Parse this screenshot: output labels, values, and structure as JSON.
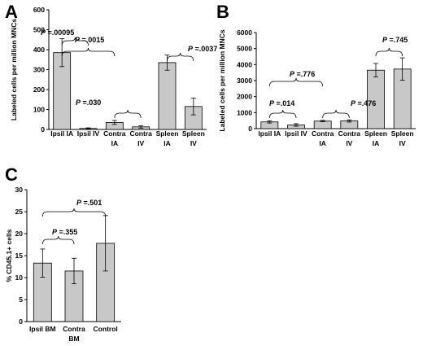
{
  "chart_data": [
    {
      "type": "bar",
      "panel": "A",
      "ylabel": "Labeled cells per million MNCs",
      "ylim": [
        0,
        600
      ],
      "yticks": [
        "0",
        "100",
        "200",
        "300",
        "400",
        "500",
        "600"
      ],
      "categories": [
        [
          "Ipsil IA"
        ],
        [
          "Ipsil IV"
        ],
        [
          "Contra",
          "IA"
        ],
        [
          "Contra",
          "IV"
        ],
        [
          "Spleen",
          "IA"
        ],
        [
          "Spleen",
          "IV"
        ]
      ],
      "values": [
        385,
        5,
        35,
        13,
        335,
        115
      ],
      "errors": [
        70,
        3,
        10,
        6,
        38,
        42
      ],
      "comparisons": [
        {
          "p": ".00095",
          "from": 0,
          "to": 1
        },
        {
          "p": ".0015",
          "from": 0,
          "to": 2
        },
        {
          "p": ".030",
          "from": 2,
          "to": 3
        },
        {
          "p": ".0037",
          "from": 4,
          "to": 5
        }
      ]
    },
    {
      "type": "bar",
      "panel": "B",
      "ylabel": "Labeled cells per million MNCs",
      "ylim": [
        0,
        6000
      ],
      "yticks": [
        "0",
        "1000",
        "2000",
        "3000",
        "4000",
        "5000",
        "6000"
      ],
      "categories": [
        [
          "Ipsil IA"
        ],
        [
          "Ipsil IV"
        ],
        [
          "Contra",
          "IA"
        ],
        [
          "Contra",
          "IV"
        ],
        [
          "Spleen",
          "IA"
        ],
        [
          "Spleen",
          "IV"
        ]
      ],
      "values": [
        420,
        230,
        470,
        480,
        3650,
        3720
      ],
      "errors": [
        70,
        80,
        40,
        70,
        420,
        700
      ],
      "comparisons": [
        {
          "p": ".776",
          "from": 0,
          "to": 2
        },
        {
          "p": ".014",
          "from": 0,
          "to": 1
        },
        {
          "p": ".476",
          "from": 2,
          "to": 3
        },
        {
          "p": ".745",
          "from": 4,
          "to": 5
        }
      ]
    },
    {
      "type": "bar",
      "panel": "C",
      "ylabel": "% CD45.1+ cells",
      "ylim": [
        0,
        30
      ],
      "yticks": [
        "0",
        "5",
        "10",
        "15",
        "20",
        "25",
        "30"
      ],
      "categories": [
        [
          "Ipsil BM"
        ],
        [
          "Contra",
          "BM"
        ],
        [
          "Control"
        ]
      ],
      "values": [
        13.3,
        11.5,
        17.8
      ],
      "errors": [
        3.2,
        2.9,
        6.3
      ],
      "comparisons": [
        {
          "p": ".355",
          "from": 0,
          "to": 1
        },
        {
          "p": ".501",
          "from": 0,
          "to": 2
        }
      ]
    }
  ],
  "p_prefix": "P",
  "p_equals": " =",
  "style": {
    "bar_fill": "#c8c8c8",
    "bar_stroke": "#000000"
  }
}
